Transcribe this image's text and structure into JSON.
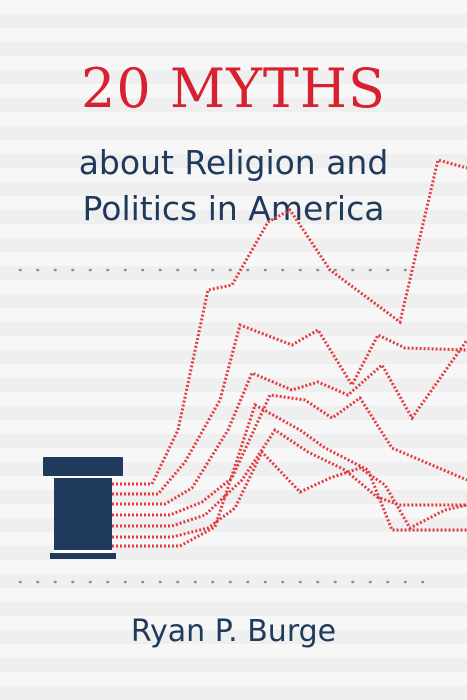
{
  "cover": {
    "title": "20 MYTHS",
    "subtitle_line1": "about Religion and",
    "subtitle_line2": "Politics in America",
    "author": "Ryan P. Burge"
  },
  "colors": {
    "title_red": "#d8212f",
    "navy": "#1f3a5a",
    "dotted_line": "#e23a3f",
    "divider_dots": "#8a8a8a"
  },
  "icons": [
    "podium-icon"
  ]
}
